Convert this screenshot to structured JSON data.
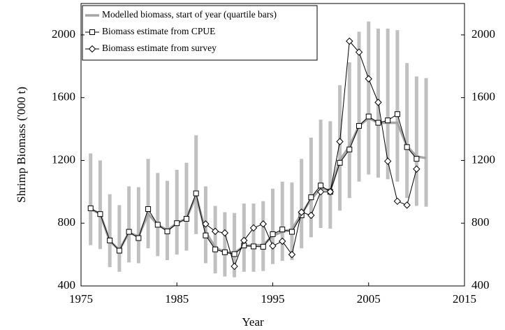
{
  "chart_data": {
    "type": "line",
    "x_label": "Year",
    "y_label": "Shrimp Biomass ('000 t)",
    "xlim": [
      1975,
      2015
    ],
    "xticks": [
      1975,
      1985,
      1995,
      2005,
      2015
    ],
    "ylim": [
      400,
      2200
    ],
    "yticks": [
      400,
      800,
      1200,
      1600,
      2000
    ],
    "y2lim": [
      400,
      2200
    ],
    "y2ticks": [
      400,
      800,
      1200,
      1600,
      2000
    ],
    "legend": "upper left",
    "x": [
      1976,
      1977,
      1978,
      1979,
      1980,
      1981,
      1982,
      1983,
      1984,
      1985,
      1986,
      1987,
      1988,
      1989,
      1990,
      1991,
      1992,
      1993,
      1994,
      1995,
      1996,
      1997,
      1998,
      1999,
      2000,
      2001,
      2002,
      2003,
      2004,
      2005,
      2006,
      2007,
      2008,
      2009,
      2010,
      2011
    ],
    "series": [
      {
        "name": "Modelled biomass, start of year (quartile bars)",
        "color": "#a6a6a6",
        "bar_color": "#c0c0c0",
        "values": [
          890,
          860,
          685,
          630,
          740,
          715,
          860,
          790,
          755,
          800,
          830,
          975,
          745,
          645,
          615,
          610,
          655,
          660,
          660,
          720,
          745,
          760,
          860,
          955,
          1020,
          1010,
          1200,
          1290,
          1420,
          1470,
          1440,
          1440,
          1440,
          1290,
          1225,
          1215
        ],
        "q1": [
          660,
          635,
          520,
          490,
          550,
          545,
          640,
          590,
          565,
          600,
          625,
          730,
          545,
          480,
          460,
          455,
          490,
          490,
          495,
          540,
          560,
          565,
          640,
          710,
          770,
          765,
          880,
          960,
          1065,
          1110,
          1090,
          1080,
          1065,
          960,
          910,
          905
        ],
        "q3": [
          1245,
          1200,
          985,
          915,
          1035,
          1030,
          1210,
          1120,
          1070,
          1140,
          1185,
          1360,
          1035,
          910,
          870,
          865,
          925,
          925,
          940,
          1020,
          1065,
          1060,
          1210,
          1345,
          1460,
          1450,
          1680,
          1825,
          2020,
          2085,
          2040,
          2040,
          2030,
          1820,
          1735,
          1725
        ]
      },
      {
        "name": "Biomass estimate from CPUE",
        "color": "#000000",
        "marker": "square",
        "values": [
          895,
          858,
          690,
          625,
          745,
          705,
          890,
          790,
          748,
          800,
          828,
          990,
          722,
          633,
          615,
          603,
          658,
          652,
          650,
          730,
          760,
          745,
          850,
          965,
          1040,
          1000,
          1185,
          1270,
          1420,
          1480,
          1440,
          1455,
          1495,
          1285,
          1210,
          null
        ]
      },
      {
        "name": "Biomass estimate from survey",
        "color": "#000000",
        "marker": "diamond",
        "values": [
          null,
          null,
          null,
          null,
          null,
          null,
          null,
          null,
          null,
          null,
          null,
          null,
          795,
          748,
          738,
          525,
          690,
          770,
          795,
          655,
          685,
          600,
          870,
          850,
          1000,
          1000,
          1320,
          1960,
          1890,
          1720,
          1570,
          1195,
          940,
          915,
          1145,
          null
        ]
      }
    ]
  }
}
